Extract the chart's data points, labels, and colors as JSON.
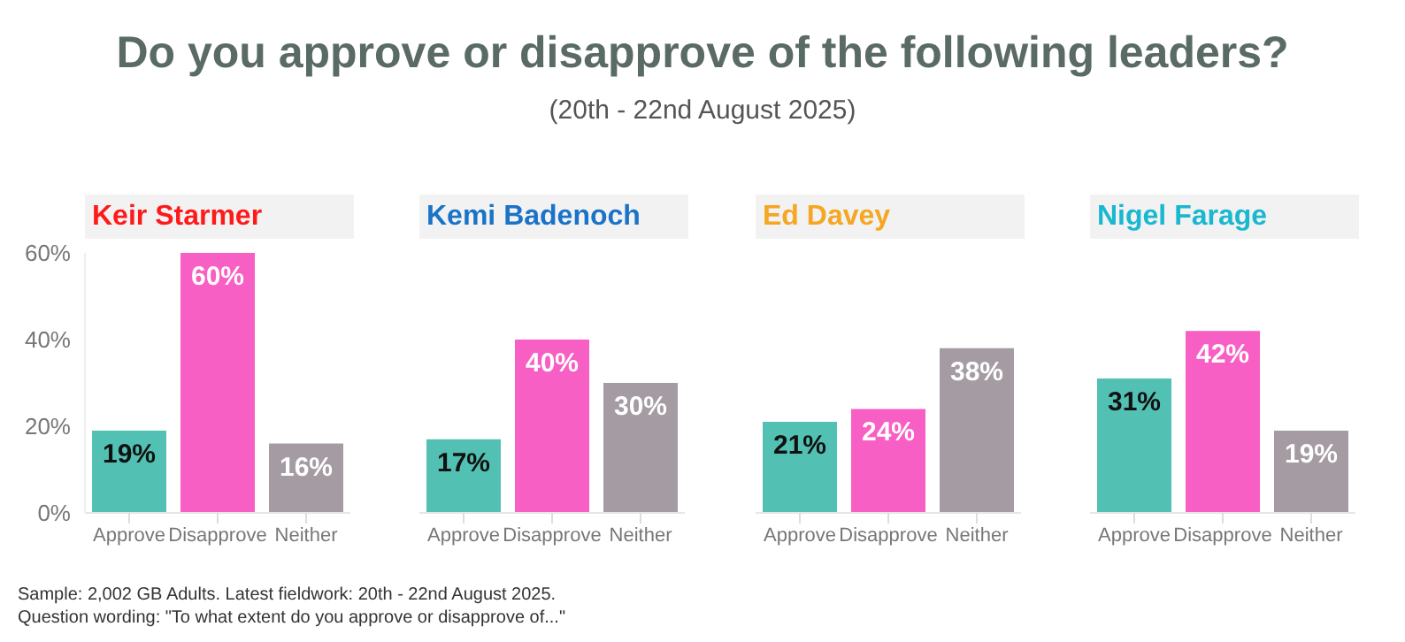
{
  "chart_data": [
    {
      "type": "other",
      "title": "Do you approve or disapprove of the following leaders?",
      "subtitle": "(20th - 22nd August 2025)"
    },
    {
      "type": "bar",
      "series": [
        {
          "name": "Keir Starmer",
          "values": [
            19,
            60,
            16
          ],
          "colors": [
            "#52c1b4",
            "#f75fc4",
            "#a59ca3"
          ],
          "value_labels": [
            "19%",
            "60%",
            "16%"
          ]
        }
      ],
      "categories": [
        "Approve",
        "Disapprove",
        "Neither"
      ],
      "ylim": [
        0,
        60
      ],
      "yticks": [
        {
          "value": 0,
          "label": "0%"
        },
        {
          "value": 20,
          "label": "20%"
        },
        {
          "value": 40,
          "label": "40%"
        },
        {
          "value": 60,
          "label": "60%"
        }
      ]
    },
    {
      "type": "bar",
      "series": [
        {
          "name": "Kemi Badenoch",
          "values": [
            17,
            40,
            30
          ],
          "colors": [
            "#52c1b4",
            "#f75fc4",
            "#a59ca3"
          ],
          "value_labels": [
            "17%",
            "40%",
            "30%"
          ]
        }
      ],
      "categories": [
        "Approve",
        "Disapprove",
        "Neither"
      ],
      "ylim": [
        0,
        60
      ],
      "tick_labels": "x"
    },
    {
      "type": "bar",
      "series": [
        {
          "name": "Ed Davey",
          "values": [
            21,
            24,
            38
          ],
          "colors": [
            "#52c1b4",
            "#f75fc4",
            "#a59ca3"
          ],
          "value_labels": [
            "21%",
            "24%",
            "38%"
          ]
        }
      ],
      "categories": [
        "Approve",
        "Disapprove",
        "Neither"
      ],
      "ylim": [
        0,
        60
      ],
      "tick_labels": "x"
    },
    {
      "type": "bar",
      "series": [
        {
          "name": "Nigel Farage",
          "values": [
            31,
            42,
            19
          ],
          "colors": [
            "#52c1b4",
            "#f75fc4",
            "#a59ca3"
          ],
          "value_labels": [
            "31%",
            "42%",
            "19%"
          ]
        }
      ],
      "categories": [
        "Approve",
        "Disapprove",
        "Neither"
      ],
      "ylim": [
        0,
        60
      ],
      "tick_labels": "x"
    },
    {
      "type": "other",
      "annotations": [
        "Sample: 2,002 GB Adults. Latest fieldwork: 20th - 22nd August 2025.",
        "Question wording: \"To what extent do you approve or disapprove of...\""
      ]
    }
  ]
}
